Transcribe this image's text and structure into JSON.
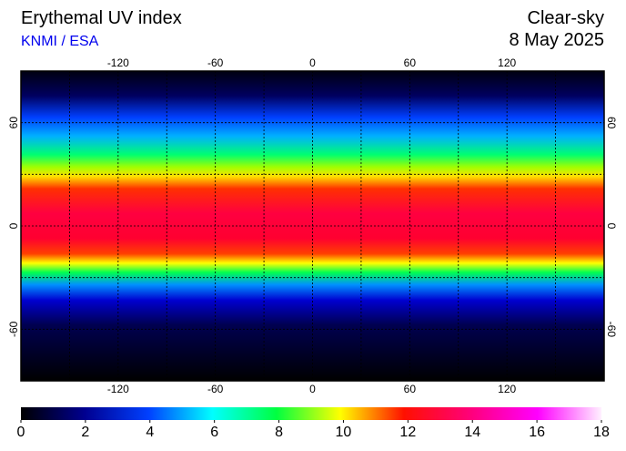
{
  "header": {
    "title": "Erythemal UV index",
    "source": "KNMI / ESA",
    "condition": "Clear-sky",
    "date": "8 May 2025"
  },
  "map": {
    "xlim": [
      -180,
      180
    ],
    "ylim": [
      -90,
      90
    ],
    "lon_ticks": [
      -120,
      -60,
      0,
      60,
      120
    ],
    "lat_ticks": [
      60,
      0,
      -60
    ]
  },
  "colorbar": {
    "range": [
      0,
      18
    ],
    "ticks": [
      0,
      2,
      4,
      6,
      8,
      10,
      12,
      14,
      16,
      18
    ]
  }
}
